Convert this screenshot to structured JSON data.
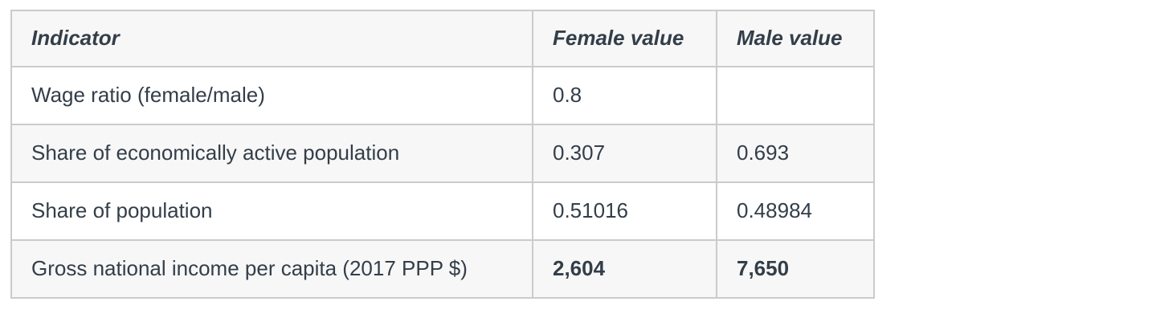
{
  "page": {
    "background": "#ffffff"
  },
  "table": {
    "header": {
      "indicator": "Indicator",
      "female": "Female value",
      "male": "Male value"
    },
    "rows": [
      {
        "indicator": "Wage ratio (female/male)",
        "female": "0.8",
        "male": ""
      },
      {
        "indicator": "Share of economically active population",
        "female": "0.307",
        "male": "0.693"
      },
      {
        "indicator": "Share of population",
        "female": "0.51016",
        "male": "0.48984"
      },
      {
        "indicator": "Gross national income per capita (2017 PPP $)",
        "female": "2,604",
        "male": "7,650"
      }
    ],
    "colors": {
      "header_background": "#f7f7f7",
      "stripe_background": "#f7f7f7",
      "border": "#cbcbcb",
      "text": "#333e49"
    }
  },
  "chart_data": {
    "type": "table",
    "title": "",
    "columns": [
      "Indicator",
      "Female value",
      "Male value"
    ],
    "rows": [
      [
        "Wage ratio (female/male)",
        0.8,
        null
      ],
      [
        "Share of economically active population",
        0.307,
        0.693
      ],
      [
        "Share of population",
        0.51016,
        0.48984
      ],
      [
        "Gross national income per capita (2017 PPP $)",
        2604,
        7650
      ]
    ],
    "notes": "Last row values rendered bold; header row bold italic; rows 2 and 4 striped light gray"
  }
}
